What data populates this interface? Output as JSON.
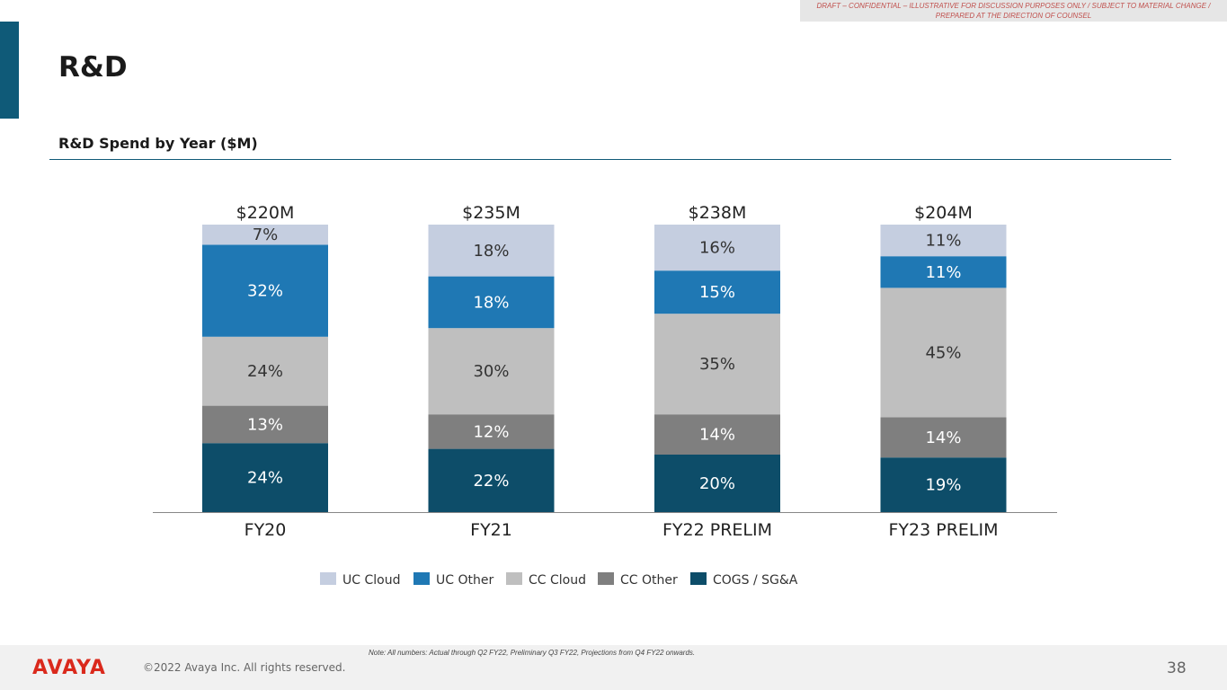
{
  "banner": {
    "text": "DRAFT – CONFIDENTIAL – ILLUSTRATIVE FOR DISCUSSION PURPOSES ONLY / SUBJECT TO MATERIAL CHANGE / PREPARED AT THE DIRECTION OF COUNSEL"
  },
  "page": {
    "title": "R&D",
    "subtitle": "R&D Spend by Year ($M)"
  },
  "footer": {
    "logo": "AVAYA",
    "copyright": "©2022 Avaya Inc. All rights reserved.",
    "note": "Note: All numbers: Actual through Q2 FY22, Preliminary Q3 FY22, Projections from Q4 FY22 onwards.",
    "page_number": "38"
  },
  "chart_data": {
    "type": "bar",
    "stacked": true,
    "normalized": true,
    "title": "R&D Spend by Year ($M)",
    "categories": [
      "FY20",
      "FY21",
      "FY22 PRELIM",
      "FY23 PRELIM"
    ],
    "totals": [
      "$220M",
      "$235M",
      "$238M",
      "$204M"
    ],
    "ylim": [
      0,
      100
    ],
    "legend_position": "bottom",
    "series": [
      {
        "name": "COGS / SG&A",
        "color": "#0d4d69",
        "label_color": "#ffffff",
        "values": [
          24,
          22,
          20,
          19
        ]
      },
      {
        "name": "CC Other",
        "color": "#7f7f7f",
        "label_color": "#ffffff",
        "values": [
          13,
          12,
          14,
          14
        ]
      },
      {
        "name": "CC Cloud",
        "color": "#bfbfbf",
        "label_color": "#333333",
        "values": [
          24,
          30,
          35,
          45
        ]
      },
      {
        "name": "UC Other",
        "color": "#1f78b4",
        "label_color": "#ffffff",
        "values": [
          32,
          18,
          15,
          11
        ]
      },
      {
        "name": "UC Cloud",
        "color": "#c5cee0",
        "label_color": "#333333",
        "values": [
          7,
          18,
          16,
          11
        ]
      }
    ],
    "legend_order": [
      "UC Cloud",
      "UC Other",
      "CC Cloud",
      "CC Other",
      "COGS / SG&A"
    ]
  }
}
